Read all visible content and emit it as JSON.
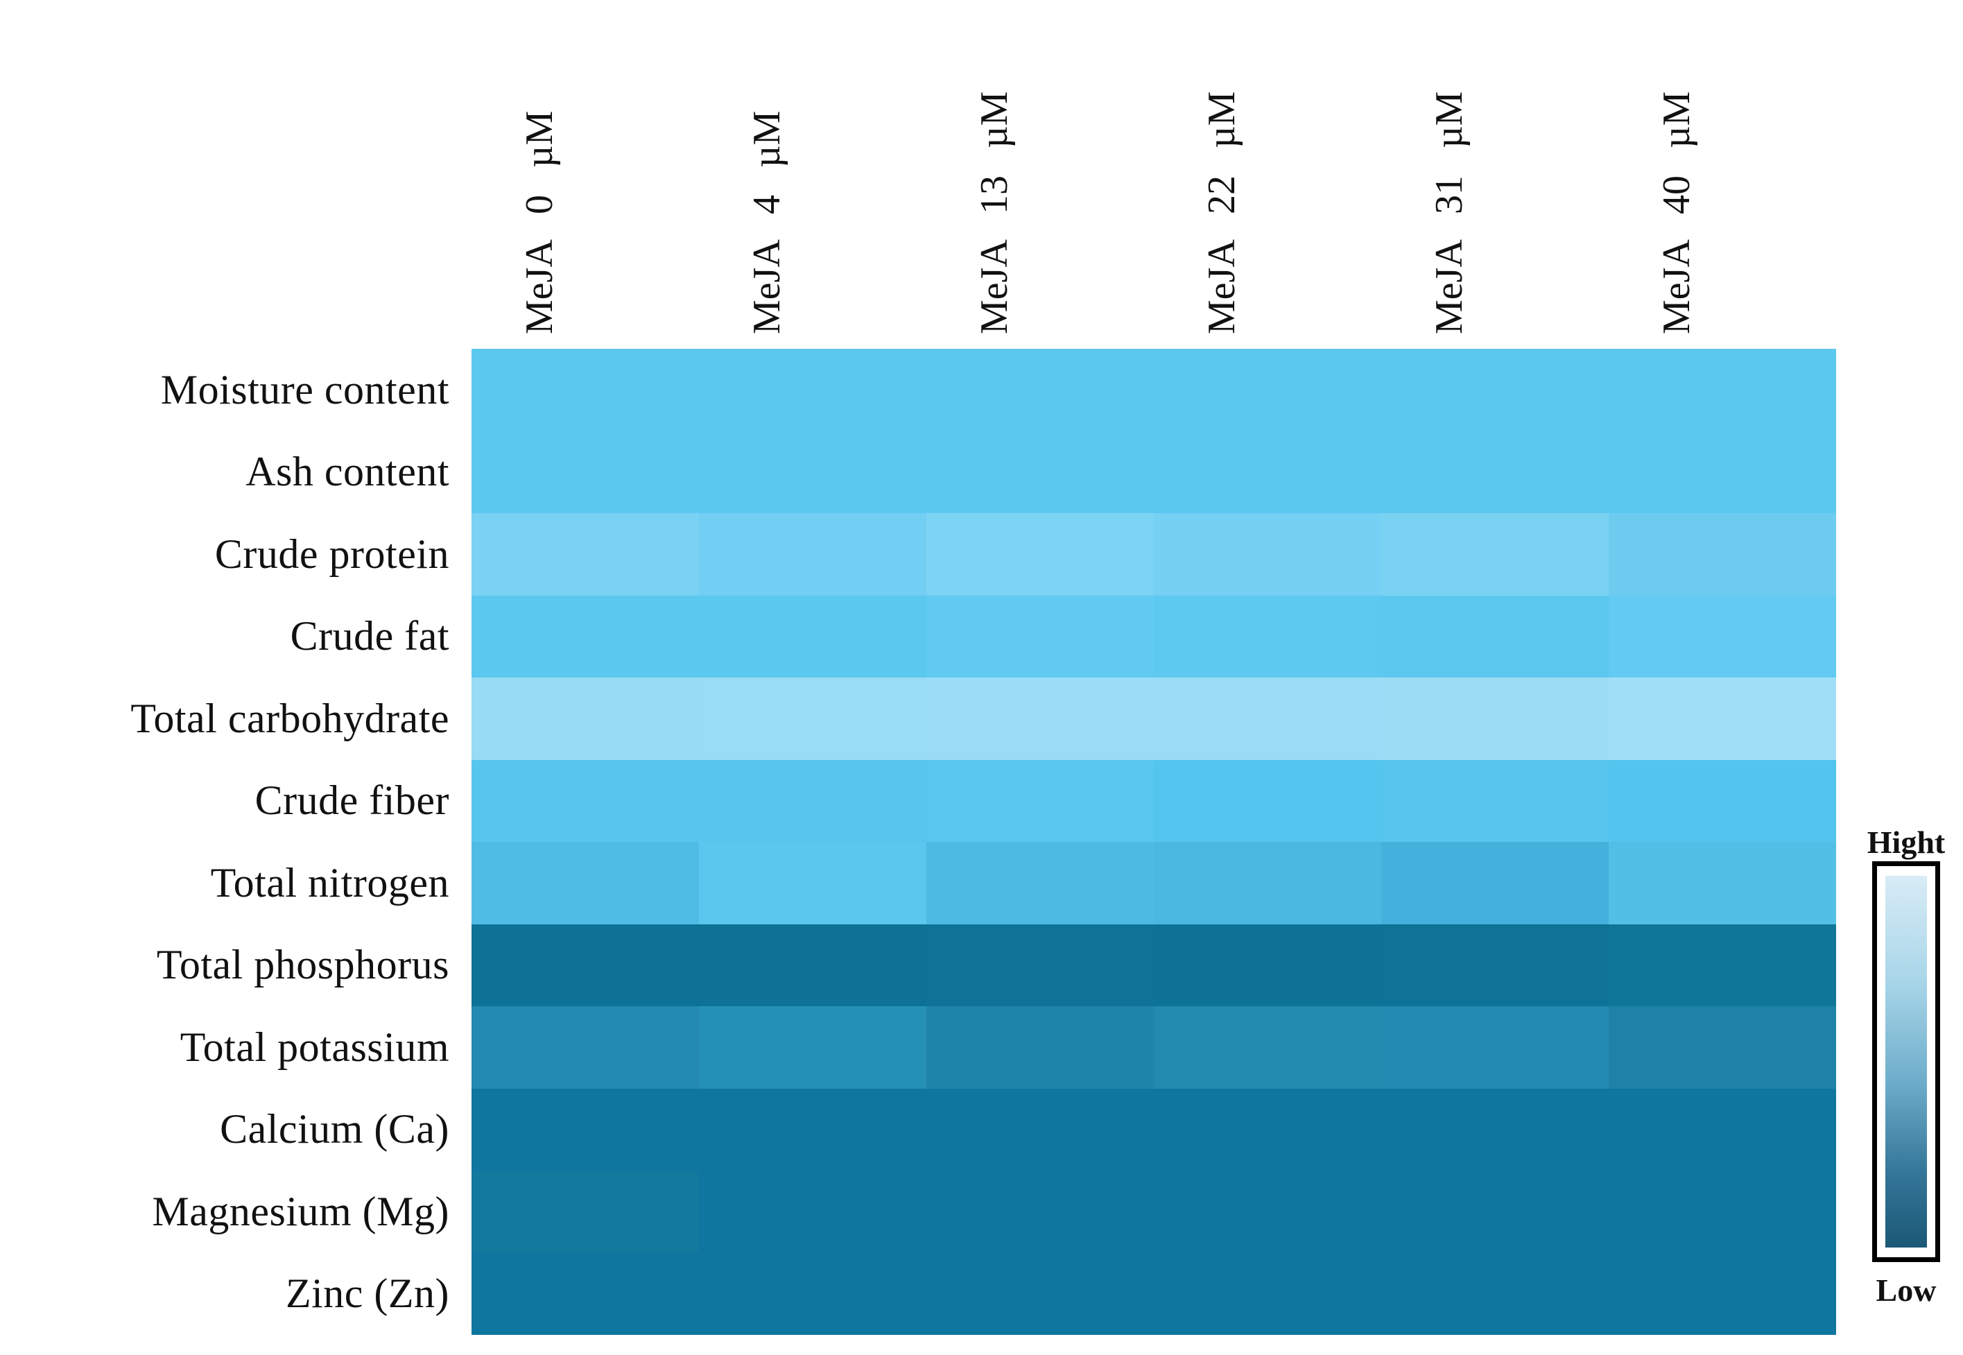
{
  "chart_data": {
    "type": "heatmap",
    "title": "",
    "columns": [
      "MeJA 0 µM",
      "MeJA 4 µM",
      "MeJA 13 µM",
      "MeJA 22 µM",
      "MeJA 31 µM",
      "MeJA 40 µM"
    ],
    "rows": [
      "Moisture content",
      "Ash content",
      "Crude protein",
      "Crude fat",
      "Total carbohydrate",
      "Crude fiber",
      "Total nitrogen",
      "Total phosphorus",
      "Total potassium",
      "Calcium (Ca)",
      "Magnesium (Mg)",
      "Zinc (Zn)"
    ],
    "cell_colors": [
      [
        "#5BC8F0",
        "#5BC8F0",
        "#5BC8F0",
        "#5BC8F0",
        "#5BC8F0",
        "#5BC8F0"
      ],
      [
        "#5BC8F0",
        "#5BC8F0",
        "#5BC8F0",
        "#5BC8F0",
        "#5BC8F0",
        "#5BC8F0"
      ],
      [
        "#79D1F3",
        "#72CEF2",
        "#7DD3F4",
        "#76D0F3",
        "#7AD2F3",
        "#6ECBF0"
      ],
      [
        "#5BC8EF",
        "#5BC8EF",
        "#60CAF1",
        "#5EC9F0",
        "#5CC8F0",
        "#63CBF1"
      ],
      [
        "#98DBF5",
        "#99DCF5",
        "#9ADCF6",
        "#9ADCF6",
        "#9CDDF6",
        "#A1DFF7"
      ],
      [
        "#56C6EE",
        "#56C6EE",
        "#58C7EF",
        "#54C5EE",
        "#56C6EE",
        "#53C4ED"
      ],
      [
        "#4FBCE5",
        "#5BC7EE",
        "#4CBAE3",
        "#4BB8E1",
        "#44B1DC",
        "#52BFE6"
      ],
      [
        "#0D7295",
        "#0D7295",
        "#0E7396",
        "#0D7295",
        "#0E7396",
        "#107698"
      ],
      [
        "#2289B0",
        "#2590B6",
        "#1F84AA",
        "#2289AF",
        "#2289B0",
        "#1E82A8"
      ],
      [
        "#0F76A0",
        "#0F76A0",
        "#0F76A0",
        "#0F76A0",
        "#0F76A0",
        "#0F76A0"
      ],
      [
        "#13799F",
        "#0F76A0",
        "#0F76A0",
        "#0F76A0",
        "#0F76A0",
        "#0F76A0"
      ],
      [
        "#0F76A0",
        "#0F76A0",
        "#0F76A0",
        "#0F76A0",
        "#0F76A0",
        "#0F76A0"
      ]
    ],
    "value_scale": {
      "encoding": "color",
      "high": "light blue (Hight)",
      "low": "dark blue (Low)"
    },
    "legend_position": "right"
  },
  "legend": {
    "high_label": "Hight",
    "low_label": "Low",
    "gradient_top_color": "#D8ECF6",
    "gradient_bottom_color": "#1C5876"
  }
}
